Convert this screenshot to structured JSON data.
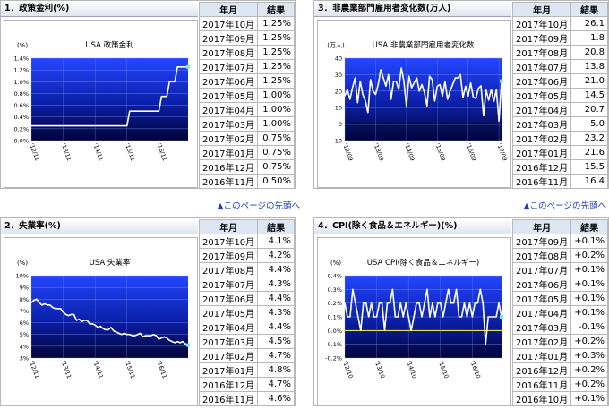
{
  "top_links": [
    "▲このページの先頭へ",
    "▲このページの先頭へ"
  ],
  "panels": [
    {
      "title": "1．政策金利(%)",
      "headers": [
        "年月",
        "結果"
      ],
      "rows": [
        [
          "2017年10月",
          "1.25%"
        ],
        [
          "2017年09月",
          "1.25%"
        ],
        [
          "2017年08月",
          "1.25%"
        ],
        [
          "2017年07月",
          "1.25%"
        ],
        [
          "2017年06月",
          "1.25%"
        ],
        [
          "2017年05月",
          "1.00%"
        ],
        [
          "2017年04月",
          "1.00%"
        ],
        [
          "2017年03月",
          "1.00%"
        ],
        [
          "2017年02月",
          "0.75%"
        ],
        [
          "2017年01月",
          "0.75%"
        ],
        [
          "2016年12月",
          "0.75%"
        ],
        [
          "2016年11月",
          "0.50%"
        ]
      ]
    },
    {
      "title": "2．失業率(%)",
      "headers": [
        "年月",
        "結果"
      ],
      "rows": [
        [
          "2017年10月",
          "4.1%"
        ],
        [
          "2017年09月",
          "4.2%"
        ],
        [
          "2017年08月",
          "4.4%"
        ],
        [
          "2017年07月",
          "4.3%"
        ],
        [
          "2017年06月",
          "4.4%"
        ],
        [
          "2017年05月",
          "4.3%"
        ],
        [
          "2017年04月",
          "4.4%"
        ],
        [
          "2017年03月",
          "4.5%"
        ],
        [
          "2017年02月",
          "4.7%"
        ],
        [
          "2017年01月",
          "4.8%"
        ],
        [
          "2016年12月",
          "4.7%"
        ],
        [
          "2016年11月",
          "4.6%"
        ]
      ]
    },
    {
      "title": "3．非農業部門雇用者変化数(万人)",
      "headers": [
        "年月",
        "結果"
      ],
      "rows": [
        [
          "2017年10月",
          "26.1"
        ],
        [
          "2017年09月",
          "1.8"
        ],
        [
          "2017年08月",
          "20.8"
        ],
        [
          "2017年07月",
          "13.8"
        ],
        [
          "2017年06月",
          "21.0"
        ],
        [
          "2017年05月",
          "14.5"
        ],
        [
          "2017年04月",
          "20.7"
        ],
        [
          "2017年03月",
          "5.0"
        ],
        [
          "2017年02月",
          "23.2"
        ],
        [
          "2017年01月",
          "21.6"
        ],
        [
          "2016年12月",
          "15.5"
        ],
        [
          "2016年11月",
          "16.4"
        ]
      ]
    },
    {
      "title": "4．CPI(除く食品＆エネルギー)(%)",
      "headers": [
        "年月",
        "結果"
      ],
      "rows": [
        [
          "2017年09月",
          "+0.1%"
        ],
        [
          "2017年08月",
          "+0.2%"
        ],
        [
          "2017年07月",
          "+0.1%"
        ],
        [
          "2017年06月",
          "+0.1%"
        ],
        [
          "2017年05月",
          "+0.1%"
        ],
        [
          "2017年04月",
          "+0.1%"
        ],
        [
          "2017年03月",
          "-0.1%"
        ],
        [
          "2017年02月",
          "+0.2%"
        ],
        [
          "2017年01月",
          "+0.3%"
        ],
        [
          "2016年12月",
          "+0.2%"
        ],
        [
          "2016年11月",
          "+0.2%"
        ],
        [
          "2016年10月",
          "+0.1%"
        ]
      ]
    }
  ],
  "chart_data": [
    {
      "type": "line",
      "title": "USA 政策金利",
      "y_label": "(%)",
      "color": "#ffffff",
      "marker_color": "#7fe3ff",
      "categories": [
        "'12/11",
        null,
        null,
        null,
        null,
        null,
        null,
        null,
        null,
        null,
        null,
        null,
        "'13/11",
        null,
        null,
        null,
        null,
        null,
        null,
        null,
        null,
        null,
        null,
        null,
        "'14/11",
        null,
        null,
        null,
        null,
        null,
        null,
        null,
        null,
        null,
        null,
        null,
        "'15/11",
        null,
        null,
        null,
        null,
        null,
        null,
        null,
        null,
        null,
        null,
        null,
        "'16/11",
        null,
        null,
        null,
        null,
        null,
        null,
        null,
        null,
        null,
        null,
        null
      ],
      "values": [
        0.25,
        0.25,
        0.25,
        0.25,
        0.25,
        0.25,
        0.25,
        0.25,
        0.25,
        0.25,
        0.25,
        0.25,
        0.25,
        0.25,
        0.25,
        0.25,
        0.25,
        0.25,
        0.25,
        0.25,
        0.25,
        0.25,
        0.25,
        0.25,
        0.25,
        0.25,
        0.25,
        0.25,
        0.25,
        0.25,
        0.25,
        0.25,
        0.25,
        0.25,
        0.25,
        0.25,
        0.25,
        0.5,
        0.5,
        0.5,
        0.5,
        0.5,
        0.5,
        0.5,
        0.5,
        0.5,
        0.5,
        0.5,
        0.5,
        0.75,
        0.75,
        0.75,
        1.0,
        1.0,
        1.0,
        1.25,
        1.25,
        1.25,
        1.25,
        1.25
      ],
      "ylim": [
        0,
        1.4
      ],
      "yticks": [
        {
          "value": 0,
          "label": "0.0%"
        },
        {
          "value": 0.2,
          "label": "0.2%"
        },
        {
          "value": 0.4,
          "label": "0.4%"
        },
        {
          "value": 0.6,
          "label": "0.6%"
        },
        {
          "value": 0.8,
          "label": "0.8%"
        },
        {
          "value": 1.0,
          "label": "1.0%"
        },
        {
          "value": 1.2,
          "label": "1.2%"
        },
        {
          "value": 1.4,
          "label": "1.4%"
        }
      ],
      "grid": true
    },
    {
      "type": "line",
      "title": "USA 失業率",
      "y_label": "(%)",
      "color": "#ffffff",
      "marker_color": "#7fe3ff",
      "categories": [
        "'12/11",
        null,
        null,
        null,
        null,
        null,
        null,
        null,
        null,
        null,
        null,
        null,
        "'13/11",
        null,
        null,
        null,
        null,
        null,
        null,
        null,
        null,
        null,
        null,
        null,
        "'14/11",
        null,
        null,
        null,
        null,
        null,
        null,
        null,
        null,
        null,
        null,
        null,
        "'15/11",
        null,
        null,
        null,
        null,
        null,
        null,
        null,
        null,
        null,
        null,
        null,
        "'16/11",
        null,
        null,
        null,
        null,
        null,
        null,
        null,
        null,
        null,
        null,
        null
      ],
      "values": [
        7.7,
        7.9,
        8.0,
        7.7,
        7.5,
        7.6,
        7.5,
        7.5,
        7.3,
        7.2,
        7.2,
        7.2,
        6.9,
        6.7,
        6.6,
        6.7,
        6.7,
        6.2,
        6.3,
        6.1,
        6.2,
        6.2,
        5.9,
        5.9,
        5.8,
        5.6,
        5.7,
        5.5,
        5.4,
        5.4,
        5.6,
        5.3,
        5.2,
        5.1,
        5.0,
        5.1,
        5.0,
        5.0,
        4.9,
        4.9,
        5.0,
        5.1,
        4.8,
        4.9,
        4.9,
        4.9,
        5.0,
        4.9,
        4.6,
        4.7,
        4.8,
        4.7,
        4.5,
        4.4,
        4.3,
        4.4,
        4.3,
        4.4,
        4.2,
        4.1
      ],
      "ylim": [
        3,
        10
      ],
      "yticks": [
        {
          "value": 3,
          "label": "3%"
        },
        {
          "value": 4,
          "label": "4%"
        },
        {
          "value": 5,
          "label": "5%"
        },
        {
          "value": 6,
          "label": "6%"
        },
        {
          "value": 7,
          "label": "7%"
        },
        {
          "value": 8,
          "label": "8%"
        },
        {
          "value": 9,
          "label": "9%"
        },
        {
          "value": 10,
          "label": "10%"
        }
      ],
      "grid": true
    },
    {
      "type": "line",
      "title": "USA 非農業部門雇用者変化数",
      "y_label": "(万人)",
      "color": "#ffffff",
      "marker_color": "#7fe3ff",
      "zero_line_color": "#ffff33",
      "categories": [
        "'12/09",
        null,
        null,
        null,
        null,
        null,
        null,
        null,
        null,
        null,
        null,
        null,
        "'13/09",
        null,
        null,
        null,
        null,
        null,
        null,
        null,
        null,
        null,
        null,
        null,
        "'14/09",
        null,
        null,
        null,
        null,
        null,
        null,
        null,
        null,
        null,
        null,
        null,
        "'15/09",
        null,
        null,
        null,
        null,
        null,
        null,
        null,
        null,
        null,
        null,
        null,
        "'16/09",
        null,
        null,
        null,
        null,
        null,
        null,
        null,
        null,
        null,
        null,
        null,
        "'17/09",
        null
      ],
      "values": [
        17,
        21,
        15,
        22,
        28,
        13,
        26,
        18,
        14,
        7,
        27,
        20,
        18,
        24,
        33,
        28,
        23,
        30,
        15,
        26,
        26,
        21,
        34,
        26,
        11,
        29,
        22,
        25,
        28,
        20,
        24,
        19,
        11,
        29,
        27,
        14,
        23,
        24,
        17,
        26,
        15,
        20,
        24,
        28,
        28,
        30,
        16,
        23,
        17,
        25,
        16.4,
        15.5,
        21.6,
        23.2,
        5.0,
        20.7,
        14.5,
        21.0,
        13.8,
        20.8,
        1.8,
        26.1
      ],
      "ylim": [
        -10,
        40
      ],
      "yticks": [
        -10,
        0,
        10,
        20,
        30,
        40
      ],
      "grid": true
    },
    {
      "type": "line",
      "title": "USA CPI(除く食品＆エネルギー)",
      "y_label": "(%)",
      "color": "#ffffff",
      "marker_color": "#7fe3ff",
      "zero_line_color": "#ffff33",
      "categories": [
        "'12/10",
        null,
        null,
        null,
        null,
        null,
        null,
        null,
        null,
        null,
        null,
        null,
        "'13/10",
        null,
        null,
        null,
        null,
        null,
        null,
        null,
        null,
        null,
        null,
        null,
        "'14/10",
        null,
        null,
        null,
        null,
        null,
        null,
        null,
        null,
        null,
        null,
        null,
        "'15/10",
        null,
        null,
        null,
        null,
        null,
        null,
        null,
        null,
        null,
        null,
        null,
        "'16/10",
        null,
        null,
        null,
        null,
        null,
        null,
        null,
        null,
        null,
        null,
        null
      ],
      "values": [
        0.2,
        0.1,
        0.1,
        0.3,
        0.2,
        0.1,
        0.0,
        0.2,
        0.2,
        0.1,
        0.2,
        0.1,
        0.1,
        0.2,
        0.2,
        0.0,
        0.2,
        0.2,
        0.3,
        0.1,
        0.1,
        0.2,
        0.1,
        0.2,
        0.1,
        0.0,
        0.1,
        0.2,
        0.2,
        0.1,
        0.2,
        0.3,
        0.1,
        0.2,
        0.1,
        0.2,
        0.2,
        0.1,
        0.2,
        0.3,
        0.2,
        0.2,
        0.3,
        0.1,
        0.1,
        0.2,
        0.1,
        0.2,
        0.1,
        0.2,
        0.2,
        0.3,
        0.2,
        -0.1,
        0.1,
        0.1,
        0.1,
        0.1,
        0.2,
        0.1
      ],
      "ylim": [
        -0.2,
        0.4
      ],
      "yticks": [
        {
          "value": -0.2,
          "label": "-0.2%"
        },
        {
          "value": -0.1,
          "label": "-0.1%"
        },
        {
          "value": 0,
          "label": "0.0%"
        },
        {
          "value": 0.1,
          "label": "0.1%"
        },
        {
          "value": 0.2,
          "label": "0.2%"
        },
        {
          "value": 0.3,
          "label": "0.3%"
        },
        {
          "value": 0.4,
          "label": "0.4%"
        }
      ],
      "grid": true
    }
  ]
}
